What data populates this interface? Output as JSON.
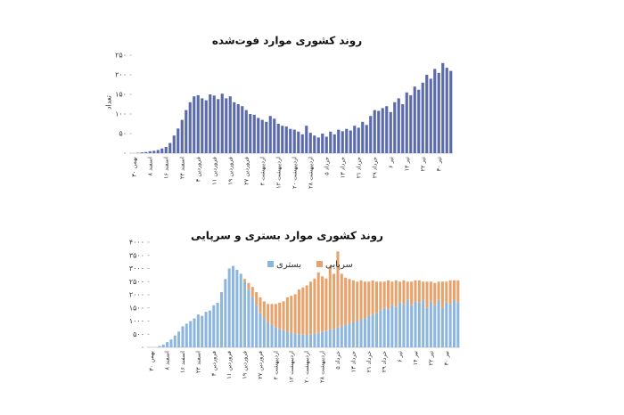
{
  "chart_data": [
    {
      "type": "bar",
      "title": "روند کشوری موارد فوت‌شده",
      "y_label": "تعداد",
      "color": "#5b6aa8",
      "categories": [
        "۳۰ بهمن",
        null,
        null,
        null,
        "۸ اسفند",
        null,
        null,
        null,
        "۱۶ اسفند",
        null,
        null,
        null,
        "۲۴ اسفند",
        null,
        null,
        null,
        "۳ فروردین",
        null,
        null,
        null,
        "۱۱ فروردین",
        null,
        null,
        null,
        "۱۹ فروردین",
        null,
        null,
        null,
        "۲۷ فروردین",
        null,
        null,
        null,
        "۴ اردیبهشت",
        null,
        null,
        null,
        "۱۲ اردیبهشت",
        null,
        null,
        null,
        "۲۰ اردیبهشت",
        null,
        null,
        null,
        "۲۸ اردیبهشت",
        null,
        null,
        null,
        "۵ خرداد",
        null,
        null,
        null,
        "۱۳ خرداد",
        null,
        null,
        null,
        "۲۱ خرداد",
        null,
        null,
        null,
        "۲۹ خرداد",
        null,
        null,
        null,
        "۶ تیر",
        null,
        null,
        null,
        "۱۴ تیر",
        null,
        null,
        null,
        "۲۲ تیر",
        null,
        null,
        null,
        "۳۰ تیر",
        null,
        null,
        null
      ],
      "values": [
        0,
        1,
        2,
        3,
        5,
        6,
        8,
        12,
        16,
        26,
        45,
        63,
        85,
        110,
        130,
        145,
        148,
        140,
        135,
        150,
        147,
        138,
        152,
        140,
        145,
        130,
        125,
        120,
        110,
        100,
        98,
        90,
        85,
        80,
        95,
        88,
        75,
        70,
        68,
        62,
        60,
        55,
        48,
        70,
        52,
        45,
        40,
        50,
        42,
        55,
        48,
        60,
        56,
        62,
        58,
        70,
        65,
        80,
        72,
        95,
        110,
        108,
        115,
        120,
        105,
        130,
        140,
        125,
        155,
        148,
        170,
        162,
        180,
        200,
        190,
        215,
        205,
        230,
        218,
        210
      ],
      "ylim": [
        0,
        250
      ],
      "yticks": [
        {
          "value": 0,
          "label": "۰"
        },
        {
          "value": 50,
          "label": "۵۰"
        },
        {
          "value": 100,
          "label": "۱۰۰"
        },
        {
          "value": 150,
          "label": "۱۵۰"
        },
        {
          "value": 200,
          "label": "۲۰۰"
        },
        {
          "value": 250,
          "label": "۲۵۰"
        }
      ]
    },
    {
      "type": "stacked_bar",
      "title": "روند کشوری موارد بستری و سرپایی",
      "categories": [
        "۳۰ بهمن",
        null,
        null,
        null,
        "۸ اسفند",
        null,
        null,
        null,
        "۱۶ اسفند",
        null,
        null,
        null,
        "۲۴ اسفند",
        null,
        null,
        null,
        "۳ فروردین",
        null,
        null,
        null,
        "۱۱ فروردین",
        null,
        null,
        null,
        "۱۹ فروردین",
        null,
        null,
        null,
        "۲۷ فروردین",
        null,
        null,
        null,
        "۴ اردیبهشت",
        null,
        null,
        null,
        "۱۲ اردیبهشت",
        null,
        null,
        null,
        "۲۰ اردیبهشت",
        null,
        null,
        null,
        "۲۸ اردیبهشت",
        null,
        null,
        null,
        "۵ خرداد",
        null,
        null,
        null,
        "۱۳ خرداد",
        null,
        null,
        null,
        "۲۱ خرداد",
        null,
        null,
        null,
        "۲۹ خرداد",
        null,
        null,
        null,
        "۶ تیر",
        null,
        null,
        null,
        "۱۴ تیر",
        null,
        null,
        null,
        "۲۲ تیر",
        null,
        null,
        null,
        "۳۰ تیر",
        null,
        null,
        null
      ],
      "series": [
        {
          "name": "بستری",
          "color": "#8cb6dd",
          "values": [
            0,
            0,
            50,
            100,
            200,
            300,
            450,
            600,
            800,
            900,
            1000,
            1100,
            1250,
            1200,
            1350,
            1400,
            1600,
            1700,
            2100,
            2600,
            3000,
            3100,
            2950,
            2800,
            2500,
            2200,
            1900,
            1600,
            1300,
            1100,
            950,
            850,
            750,
            700,
            650,
            600,
            560,
            520,
            500,
            480,
            460,
            500,
            520,
            550,
            600,
            620,
            680,
            700,
            750,
            800,
            850,
            900,
            950,
            1000,
            1050,
            1100,
            1200,
            1250,
            1300,
            1400,
            1500,
            1450,
            1600,
            1550,
            1700,
            1650,
            1800,
            1600,
            1750,
            1700,
            1800,
            1500,
            1750,
            1600,
            1800,
            1500,
            1700,
            1650,
            1800,
            1700
          ]
        },
        {
          "name": "سرپایی",
          "color": "#e8a36c",
          "values": [
            0,
            0,
            0,
            0,
            0,
            0,
            0,
            0,
            0,
            0,
            0,
            0,
            0,
            0,
            0,
            0,
            0,
            0,
            0,
            0,
            0,
            0,
            0,
            0,
            100,
            250,
            400,
            500,
            600,
            650,
            700,
            800,
            900,
            1000,
            1100,
            1300,
            1400,
            1500,
            1700,
            1800,
            1900,
            2000,
            2100,
            2300,
            2100,
            2000,
            2400,
            2100,
            2900,
            2000,
            1800,
            1700,
            1600,
            1500,
            1500,
            1400,
            1300,
            1300,
            1200,
            1100,
            1000,
            1100,
            900,
            1000,
            800,
            900,
            700,
            900,
            800,
            850,
            700,
            1000,
            750,
            850,
            700,
            1000,
            800,
            900,
            750,
            850
          ]
        }
      ],
      "ylim": [
        0,
        4000
      ],
      "yticks": [
        {
          "value": 0,
          "label": "۰"
        },
        {
          "value": 500,
          "label": "۵۰۰"
        },
        {
          "value": 1000,
          "label": "۱۰۰۰"
        },
        {
          "value": 1500,
          "label": "۱۵۰۰"
        },
        {
          "value": 2000,
          "label": "۲۰۰۰"
        },
        {
          "value": 2500,
          "label": "۲۵۰۰"
        },
        {
          "value": 3000,
          "label": "۳۰۰۰"
        },
        {
          "value": 3500,
          "label": "۳۵۰۰"
        },
        {
          "value": 4000,
          "label": "۴۰۰۰"
        }
      ]
    }
  ]
}
